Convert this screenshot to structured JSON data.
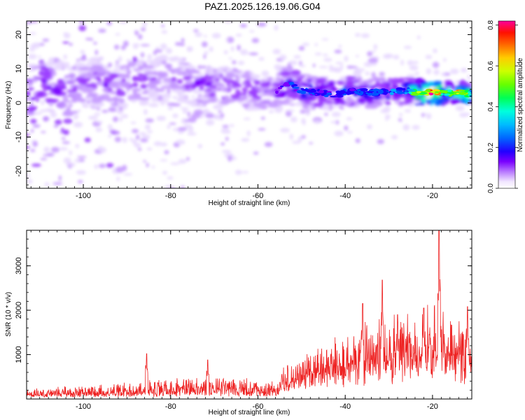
{
  "title": "PAZ1.2025.126.19.06.G04",
  "chart_data": [
    {
      "type": "heatmap",
      "xlabel": "Height of straight line (km)",
      "ylabel": "Frequency (Hz)",
      "xlim": [
        -113,
        -11
      ],
      "ylim": [
        -25,
        24
      ],
      "xticks": [
        -100,
        -80,
        -60,
        -40,
        -20
      ],
      "yticks": [
        -20,
        -10,
        0,
        10,
        20
      ],
      "colorbar": {
        "label": "Normalized spectral amplitude",
        "range": [
          0,
          0.82
        ],
        "ticks": [
          "0.0",
          "0.2",
          "0.4",
          "0.6",
          "0.8"
        ],
        "colormap": [
          "#ffffff",
          "#e8d8ff",
          "#c59aff",
          "#9a3cff",
          "#7a00ff",
          "#2200ff",
          "#0055ff",
          "#00aaff",
          "#00ffcc",
          "#00ff44",
          "#66ff00",
          "#ccff00",
          "#ffdd00",
          "#ff8800",
          "#ff2200",
          "#ff00aa"
        ]
      },
      "ridge": [
        {
          "x": -112,
          "f": 3.5,
          "a": 0.25
        },
        {
          "x": -108,
          "f": 5.5,
          "a": 0.22
        },
        {
          "x": -104,
          "f": 3.0,
          "a": 0.2
        },
        {
          "x": -100,
          "f": 5.0,
          "a": 0.18
        },
        {
          "x": -96,
          "f": 6.0,
          "a": 0.2
        },
        {
          "x": -92,
          "f": 4.0,
          "a": 0.18
        },
        {
          "x": -88,
          "f": 6.5,
          "a": 0.17
        },
        {
          "x": -84,
          "f": 5.5,
          "a": 0.16
        },
        {
          "x": -80,
          "f": 8.0,
          "a": 0.15
        },
        {
          "x": -76,
          "f": 6.0,
          "a": 0.18
        },
        {
          "x": -72,
          "f": 5.0,
          "a": 0.22
        },
        {
          "x": -68,
          "f": 4.5,
          "a": 0.22
        },
        {
          "x": -64,
          "f": 4.0,
          "a": 0.2
        },
        {
          "x": -60,
          "f": 3.5,
          "a": 0.2
        },
        {
          "x": -56,
          "f": 3.0,
          "a": 0.2
        },
        {
          "x": -53,
          "f": 5.5,
          "a": 0.3
        },
        {
          "x": -50,
          "f": 3.5,
          "a": 0.32
        },
        {
          "x": -46,
          "f": 3.0,
          "a": 0.3
        },
        {
          "x": -42,
          "f": 2.5,
          "a": 0.3
        },
        {
          "x": -38,
          "f": 3.5,
          "a": 0.32
        },
        {
          "x": -34,
          "f": 3.0,
          "a": 0.32
        },
        {
          "x": -30,
          "f": 3.5,
          "a": 0.33
        },
        {
          "x": -26,
          "f": 3.5,
          "a": 0.35
        },
        {
          "x": -23,
          "f": 3.0,
          "a": 0.6
        },
        {
          "x": -20,
          "f": 3.0,
          "a": 0.75
        },
        {
          "x": -17,
          "f": 3.0,
          "a": 0.5
        },
        {
          "x": -13,
          "f": 3.0,
          "a": 0.7
        },
        {
          "x": -11,
          "f": 2.5,
          "a": 0.4
        }
      ]
    },
    {
      "type": "line",
      "xlabel": "Height of straight line (km)",
      "ylabel": "SNR (10 * v/v)",
      "xlim": [
        -113,
        -11
      ],
      "ylim": [
        0,
        3800
      ],
      "xticks": [
        -100,
        -80,
        -60,
        -40,
        -20
      ],
      "yticks": [
        1000,
        2000,
        3000
      ],
      "color": "#ee2222",
      "envelope": [
        {
          "x": -113,
          "base": 80,
          "amp": 150
        },
        {
          "x": -100,
          "base": 100,
          "amp": 200
        },
        {
          "x": -90,
          "base": 110,
          "amp": 260
        },
        {
          "x": -80,
          "base": 130,
          "amp": 330
        },
        {
          "x": -70,
          "base": 140,
          "amp": 380
        },
        {
          "x": -60,
          "base": 130,
          "amp": 300
        },
        {
          "x": -56,
          "base": 140,
          "amp": 220
        },
        {
          "x": -54,
          "base": 400,
          "amp": 450
        },
        {
          "x": -45,
          "base": 500,
          "amp": 700
        },
        {
          "x": -40,
          "base": 600,
          "amp": 800
        },
        {
          "x": -35,
          "base": 700,
          "amp": 1100
        },
        {
          "x": -30,
          "base": 750,
          "amp": 1200
        },
        {
          "x": -25,
          "base": 800,
          "amp": 1200
        },
        {
          "x": -20,
          "base": 850,
          "amp": 1250
        },
        {
          "x": -15,
          "base": 850,
          "amp": 1150
        },
        {
          "x": -11,
          "base": 800,
          "amp": 1000
        }
      ],
      "peaks": [
        {
          "x": -85.5,
          "y": 1020
        },
        {
          "x": -71.5,
          "y": 880
        },
        {
          "x": -36.0,
          "y": 2150
        },
        {
          "x": -31.5,
          "y": 2680
        },
        {
          "x": -28.0,
          "y": 1900
        },
        {
          "x": -22.0,
          "y": 2050
        },
        {
          "x": -18.5,
          "y": 3800
        },
        {
          "x": -12.0,
          "y": 2080
        }
      ]
    }
  ]
}
